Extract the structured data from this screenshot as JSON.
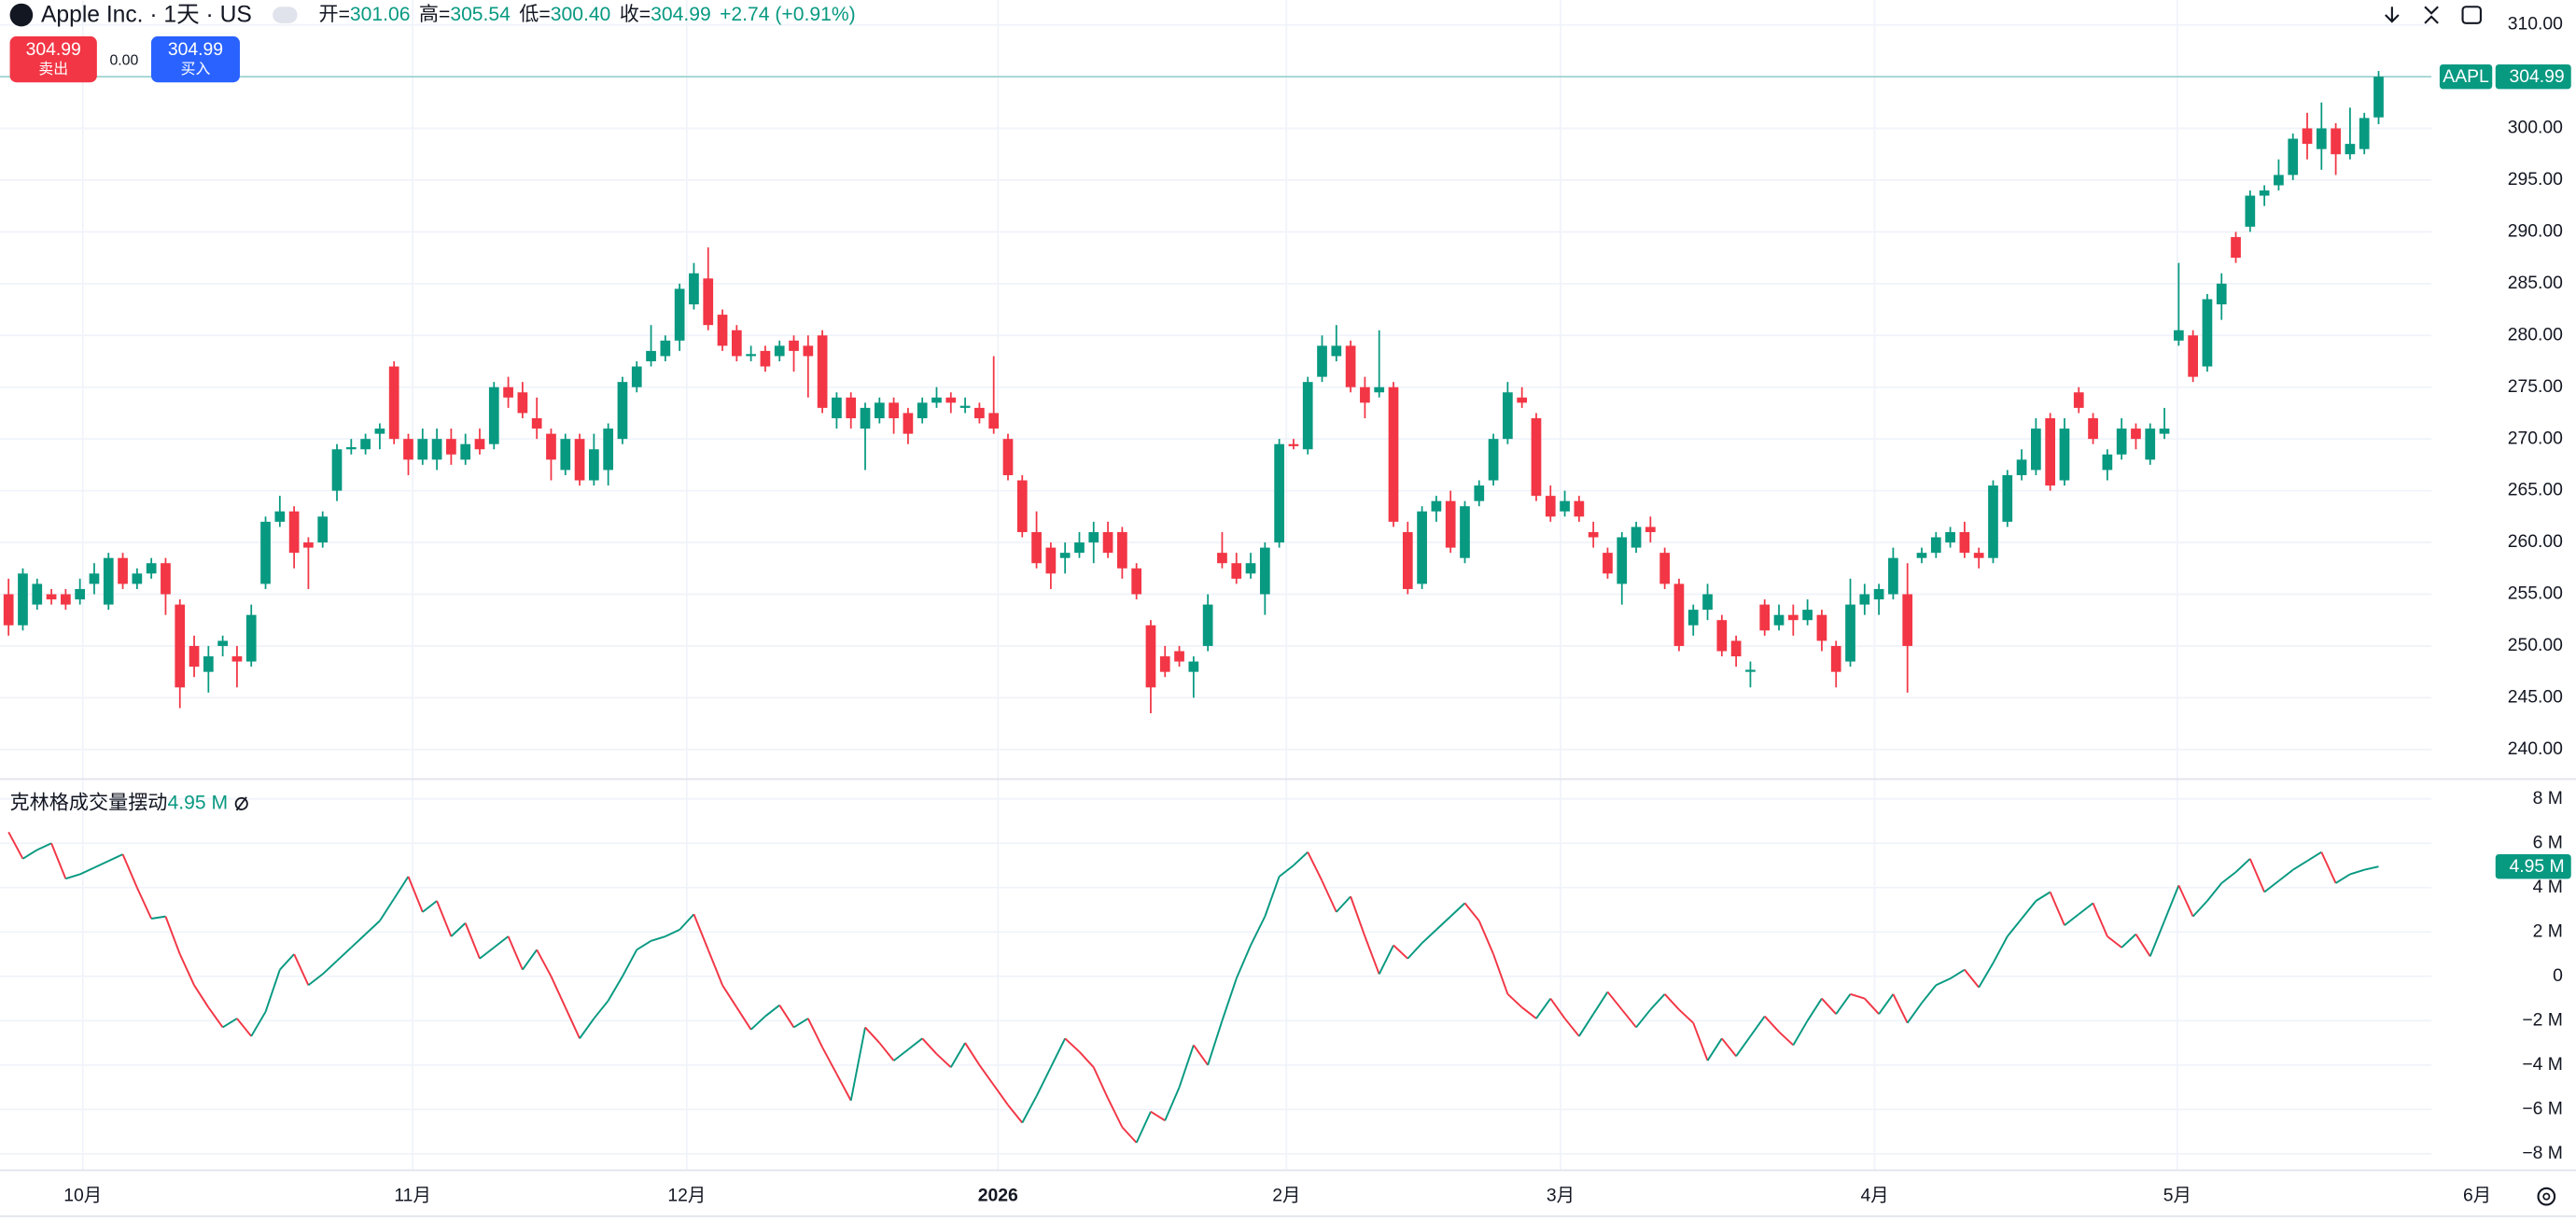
{
  "header": {
    "symbol": "Apple Inc. · 1天 · US",
    "ohlc": [
      {
        "key": "开=",
        "value": "301.06"
      },
      {
        "key": "高=",
        "value": "305.54"
      },
      {
        "key": "低=",
        "value": "300.40"
      },
      {
        "key": "收=",
        "value": "304.99"
      }
    ],
    "change": "+2.74 (+0.91%)"
  },
  "trade": {
    "sell_price": "304.99",
    "sell_label": "卖出",
    "spread": "0.00",
    "buy_price": "304.99",
    "buy_label": "买入"
  },
  "chart_data": [
    {
      "type": "candlestick",
      "up_color": "#089981",
      "down_color": "#f23645",
      "xlim": [
        -0.6,
        169.7
      ],
      "ylim": [
        237.14,
        312.38
      ],
      "yticks": [
        {
          "value": 310,
          "label": "310.00"
        },
        {
          "value": 305,
          "label": "305.00"
        },
        {
          "value": 300,
          "label": "300.00"
        },
        {
          "value": 295,
          "label": "295.00"
        },
        {
          "value": 290,
          "label": "290.00"
        },
        {
          "value": 285,
          "label": "285.00"
        },
        {
          "value": 280,
          "label": "280.00"
        },
        {
          "value": 275,
          "label": "275.00"
        },
        {
          "value": 270,
          "label": "270.00"
        },
        {
          "value": 265,
          "label": "265.00"
        },
        {
          "value": 260,
          "label": "260.00"
        },
        {
          "value": 255,
          "label": "255.00"
        },
        {
          "value": 250,
          "label": "250.00"
        },
        {
          "value": 245,
          "label": "245.00"
        },
        {
          "value": 240,
          "label": "240.00"
        }
      ],
      "last_label": {
        "symbol": "AAPL",
        "value": "304.99"
      },
      "open": [
        255,
        252,
        254,
        255,
        255,
        254.5,
        256,
        254,
        258.5,
        256,
        257,
        258,
        254,
        250,
        247.5,
        250,
        249,
        248.5,
        256,
        262,
        263,
        260,
        260,
        265,
        269,
        269,
        270.5,
        277,
        270,
        268,
        268,
        270,
        268,
        270,
        269.5,
        275,
        274.5,
        272,
        270.5,
        267,
        270,
        266,
        267,
        270,
        275,
        277.5,
        278,
        279.5,
        283,
        285.5,
        282,
        280.5,
        278,
        278.5,
        278,
        279.5,
        279,
        280,
        272,
        274,
        271,
        272,
        273.5,
        272.5,
        272,
        273.5,
        274,
        273,
        273,
        272.5,
        270,
        266,
        261,
        259.5,
        258.5,
        259,
        260,
        261,
        261,
        257.5,
        252,
        249,
        249.5,
        247.5,
        250,
        259,
        258,
        257,
        255,
        260,
        269.5,
        269,
        276,
        278,
        279,
        275,
        274.5,
        275,
        261,
        256,
        263,
        264,
        258.5,
        264,
        266,
        270,
        274,
        272,
        264.5,
        263,
        264,
        261,
        259,
        256,
        259.5,
        261.5,
        259,
        256,
        252,
        253.5,
        252.5,
        250.5,
        247.5,
        254,
        252,
        253,
        252.5,
        253,
        250,
        248.5,
        254,
        254.5,
        255,
        255,
        258.5,
        259,
        260,
        261,
        259,
        258.5,
        262,
        266.5,
        267,
        272,
        266,
        274.5,
        272,
        267,
        268.5,
        271,
        268,
        270.5,
        279.5,
        280,
        277,
        283,
        289.5,
        290.5,
        293.5,
        294.5,
        295.5,
        300,
        298,
        300,
        297.5,
        298,
        301.06
      ],
      "high": [
        256.5,
        257.5,
        256.5,
        255.5,
        255.5,
        256.5,
        258,
        259,
        259,
        257.5,
        258.5,
        258.5,
        254.5,
        251,
        250,
        251,
        250,
        254,
        262.5,
        264.5,
        263.5,
        260.5,
        263,
        269.5,
        270,
        270.5,
        271.5,
        277.5,
        270.5,
        271,
        271,
        271,
        270.5,
        271,
        275.5,
        276,
        275.5,
        274,
        271,
        270.5,
        270.5,
        270.5,
        271.5,
        276,
        277.5,
        281,
        280,
        285,
        287,
        288.5,
        282.5,
        281,
        279,
        279,
        279.5,
        280,
        280,
        280.5,
        274.5,
        274.5,
        273.5,
        274,
        274,
        273,
        274,
        275,
        274.5,
        274,
        273.5,
        278,
        270.5,
        266.5,
        263,
        260,
        260,
        261,
        262,
        262,
        261.5,
        258,
        252.5,
        250,
        250,
        249,
        255,
        261,
        259,
        259,
        260,
        270,
        270,
        276,
        280,
        281,
        279.5,
        276,
        280.5,
        275.5,
        262,
        263.5,
        264.5,
        265,
        264,
        266,
        270.5,
        275.5,
        275,
        272.5,
        265.5,
        265,
        264.5,
        262,
        259.5,
        261,
        262,
        262.5,
        259.5,
        256.5,
        254,
        256,
        253,
        251,
        248.5,
        254.5,
        254,
        254,
        254.5,
        253.5,
        250.5,
        256.5,
        256,
        256,
        259.5,
        258,
        259.5,
        261,
        261.5,
        262,
        259.5,
        266,
        267,
        269,
        272,
        272.5,
        272,
        275,
        272.5,
        269,
        272,
        271.5,
        271.5,
        273,
        287,
        280.5,
        284,
        286,
        290,
        294,
        294.5,
        297,
        299.5,
        301.5,
        302.5,
        300.5,
        302,
        301.5,
        305.54
      ],
      "low": [
        251,
        251.5,
        253.5,
        254,
        253.5,
        254,
        255,
        253.5,
        255.5,
        255.5,
        256.5,
        253,
        244,
        247,
        245.5,
        249,
        246,
        248,
        255.5,
        261.5,
        257.5,
        255.5,
        259.5,
        264,
        268.5,
        268.5,
        269,
        269.5,
        266.5,
        267.5,
        267,
        267.5,
        267.5,
        268.5,
        269,
        273,
        272,
        270,
        266,
        266.5,
        265.5,
        265.5,
        265.5,
        269.5,
        274.5,
        277,
        277.5,
        278.5,
        282.5,
        280.5,
        278.5,
        277.5,
        277.5,
        276.5,
        277.5,
        276.5,
        274,
        272.5,
        271,
        271,
        267,
        271.5,
        270.5,
        269.5,
        271.5,
        273,
        272.5,
        272.5,
        271.5,
        270.5,
        266,
        260.5,
        257.5,
        255.5,
        257,
        258.5,
        258,
        258.5,
        256.5,
        254.5,
        243.5,
        247,
        248,
        245,
        249.5,
        257.5,
        256,
        256.5,
        253,
        259.5,
        269,
        268.5,
        275.5,
        277.5,
        274.5,
        272,
        274,
        261.5,
        255,
        255.5,
        262,
        259,
        258,
        263.5,
        265.5,
        269.5,
        273,
        264,
        262,
        262.5,
        262,
        259.5,
        256.5,
        254,
        259,
        260,
        255.5,
        249.5,
        251,
        252.5,
        249,
        248,
        246,
        251,
        251.5,
        251,
        252,
        249.5,
        246,
        248,
        253,
        253,
        254.5,
        245.5,
        258,
        258.5,
        259.5,
        258.5,
        257.5,
        258,
        261.5,
        266,
        266.5,
        265,
        265.5,
        272.5,
        269.5,
        266,
        268,
        269,
        267.5,
        270,
        279,
        275.5,
        276.5,
        281.5,
        287,
        290,
        292.5,
        294,
        295,
        297,
        296,
        295.5,
        297,
        297.5,
        300.4
      ],
      "close": [
        252,
        257,
        256,
        254.5,
        254,
        255.5,
        257,
        258.5,
        256,
        257,
        258,
        255,
        246,
        248,
        249,
        250.5,
        248.5,
        253,
        262,
        263,
        259,
        259.5,
        262.5,
        269,
        269.2,
        270,
        271,
        270,
        268,
        270,
        270,
        268.5,
        269.5,
        269,
        275,
        274,
        272.5,
        271,
        268,
        270,
        266,
        269,
        271,
        275.5,
        277,
        278.5,
        279.5,
        284.5,
        286,
        281,
        279,
        278,
        278.2,
        277,
        279,
        278.5,
        278,
        273,
        274,
        272,
        273,
        273.5,
        272,
        270.5,
        273.5,
        274,
        273.5,
        273.2,
        272,
        271,
        266.5,
        261,
        258,
        257,
        259,
        260,
        261,
        259,
        257.5,
        255,
        246,
        247.5,
        248.5,
        248.5,
        254,
        258,
        256.5,
        258,
        259.5,
        269.5,
        269.3,
        275.5,
        279,
        279,
        275,
        273.5,
        275,
        262,
        255.5,
        263,
        264,
        259.5,
        263.5,
        265.5,
        270,
        274.5,
        273.5,
        264.5,
        262.5,
        264,
        262.5,
        260.5,
        257,
        260.5,
        261.5,
        261,
        256,
        250,
        253.5,
        255,
        249.5,
        249,
        247.7,
        251.5,
        253,
        252.5,
        253.5,
        250.5,
        247.5,
        254,
        255,
        255.5,
        258.5,
        250,
        259,
        260.5,
        261,
        259,
        258.5,
        265.5,
        266.5,
        268,
        271,
        265.5,
        271,
        273,
        270,
        268.5,
        271,
        270,
        271,
        271,
        280.5,
        276,
        283.5,
        285,
        287.5,
        293.5,
        294,
        295.5,
        299,
        298.5,
        300,
        297.5,
        298.5,
        301,
        304.99
      ]
    },
    {
      "type": "line",
      "name": "克林格成交量摆动",
      "value_label": "4.95 M",
      "up_color": "#089981",
      "down_color": "#f23645",
      "xlim": [
        -0.6,
        169.7
      ],
      "ylim": [
        -8.74,
        8.89
      ],
      "yticks": [
        {
          "value": 8,
          "label": "8 M"
        },
        {
          "value": 6,
          "label": "6 M"
        },
        {
          "value": 4,
          "label": "4 M"
        },
        {
          "value": 2,
          "label": "2 M"
        },
        0,
        {
          "value": -2,
          "label": "−2 M"
        },
        {
          "value": -4,
          "label": "−4 M"
        },
        {
          "value": -6,
          "label": "−6 M"
        },
        {
          "value": -8,
          "label": "−8 M"
        }
      ],
      "xticks": [
        {
          "value": 5.2,
          "label": "10月"
        },
        {
          "value": 28.3,
          "label": "11月"
        },
        {
          "value": 47.5,
          "label": "12月"
        },
        {
          "value": 69.3,
          "label": "2026"
        },
        {
          "value": 89.5,
          "label": "2月"
        },
        {
          "value": 108.7,
          "label": "3月"
        },
        {
          "value": 130.7,
          "label": "4月"
        },
        {
          "value": 151.9,
          "label": "5月"
        },
        {
          "value": 172.9,
          "label": "6月"
        }
      ],
      "values": [
        6.5,
        5.3,
        5.7,
        6.0,
        4.4,
        4.6,
        4.9,
        5.2,
        5.5,
        4.0,
        2.6,
        2.7,
        1.0,
        -0.4,
        -1.4,
        -2.3,
        -1.9,
        -2.7,
        -1.6,
        0.3,
        1.0,
        -0.4,
        0.1,
        0.7,
        1.3,
        1.9,
        2.5,
        3.5,
        4.5,
        2.9,
        3.4,
        1.8,
        2.4,
        0.8,
        1.3,
        1.8,
        0.3,
        1.2,
        0.0,
        -1.4,
        -2.8,
        -1.9,
        -1.1,
        0.0,
        1.2,
        1.6,
        1.8,
        2.1,
        2.8,
        1.2,
        -0.4,
        -1.4,
        -2.4,
        -1.8,
        -1.3,
        -2.3,
        -1.9,
        -3.2,
        -4.4,
        -5.6,
        -2.3,
        -3.0,
        -3.8,
        -3.3,
        -2.8,
        -3.5,
        -4.1,
        -3.0,
        -4.0,
        -4.9,
        -5.8,
        -6.6,
        -5.4,
        -4.1,
        -2.8,
        -3.4,
        -4.1,
        -5.5,
        -6.8,
        -7.5,
        -6.1,
        -6.5,
        -5.0,
        -3.1,
        -4.0,
        -2.0,
        -0.1,
        1.4,
        2.7,
        4.5,
        5.0,
        5.6,
        4.3,
        2.9,
        3.6,
        1.8,
        0.1,
        1.4,
        0.8,
        1.5,
        2.1,
        2.7,
        3.3,
        2.5,
        1.0,
        -0.8,
        -1.4,
        -1.9,
        -1.0,
        -1.9,
        -2.7,
        -1.7,
        -0.7,
        -1.5,
        -2.3,
        -1.5,
        -0.8,
        -1.5,
        -2.1,
        -3.8,
        -2.8,
        -3.6,
        -2.7,
        -1.8,
        -2.5,
        -3.1,
        -2.0,
        -1.0,
        -1.7,
        -0.8,
        -1.0,
        -1.7,
        -0.8,
        -2.1,
        -1.2,
        -0.4,
        -0.1,
        0.3,
        -0.5,
        0.6,
        1.8,
        2.6,
        3.4,
        3.8,
        2.3,
        2.8,
        3.3,
        1.8,
        1.3,
        1.9,
        0.9,
        2.5,
        4.1,
        2.7,
        3.4,
        4.2,
        4.7,
        5.3,
        3.8,
        4.3,
        4.8,
        5.2,
        5.6,
        4.2,
        4.6,
        4.8,
        4.95
      ]
    }
  ]
}
